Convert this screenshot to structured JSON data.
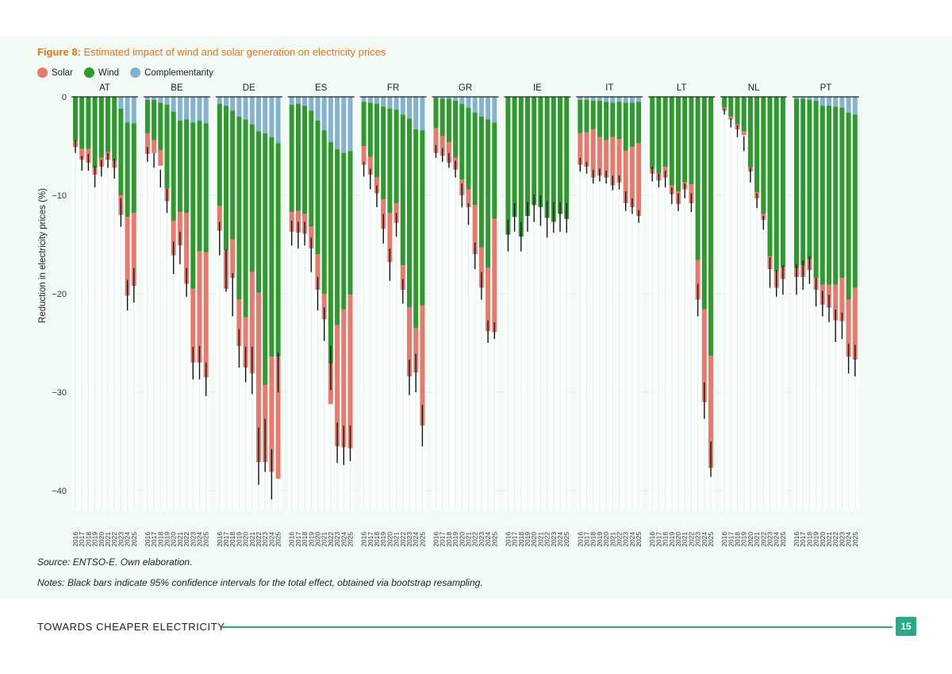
{
  "figure": {
    "label": "Figure 8:",
    "title": "Estimated impact of wind and solar generation on electricity prices"
  },
  "legend": [
    {
      "label": "Solar",
      "color": "#e87a6d"
    },
    {
      "label": "Wind",
      "color": "#2e9a2e"
    },
    {
      "label": "Complementarity",
      "color": "#86b2d2"
    }
  ],
  "source": "Source: ENTSO-E. Own elaboration.",
  "notes": "Notes: Black bars indicate 95% confidence intervals for the total effect, obtained via bootstrap resampling.",
  "footer": {
    "title": "TOWARDS CHEAPER ELECTRICITY",
    "page": "15"
  },
  "chart_data": {
    "type": "bar",
    "stacked": true,
    "ylabel": "Reduction in electricity prices (%)",
    "ylim": [
      -42,
      0
    ],
    "yticks": [
      0,
      -10,
      -20,
      -30,
      -40
    ],
    "ytick_labels": [
      "0",
      "−10",
      "−20",
      "−30",
      "−40"
    ],
    "x": [
      "2016",
      "2017",
      "2018",
      "2019",
      "2020",
      "2021",
      "2022",
      "2023",
      "2024",
      "2025"
    ],
    "series_names": [
      "Complementarity",
      "Wind",
      "Solar"
    ],
    "panels": [
      {
        "label": "AT",
        "complementarity": [
          0,
          0,
          0,
          0,
          0,
          0,
          0,
          1.2,
          2.6,
          2.7
        ],
        "wind": [
          4.5,
          5.3,
          5.3,
          7.2,
          6.2,
          5.6,
          6.5,
          8.8,
          9.6,
          9.1
        ],
        "solar": [
          0.6,
          1.1,
          1.4,
          0.7,
          0.9,
          0.8,
          0.7,
          2.0,
          8.0,
          7.4
        ],
        "ci": [
          [
            -5.7,
            -4.4
          ],
          [
            -7.5,
            -6.0
          ],
          [
            -7.5,
            -5.8
          ],
          [
            -9.2,
            -7.0
          ],
          [
            -8.1,
            -6.4
          ],
          [
            -7.2,
            -5.7
          ],
          [
            -8.3,
            -6.3
          ],
          [
            -13.2,
            -10.3
          ],
          [
            -21.7,
            -18.6
          ],
          [
            -20.9,
            -17.4
          ]
        ]
      },
      {
        "label": "BE",
        "complementarity": [
          0.3,
          0.3,
          0.6,
          0.8,
          1.5,
          2.4,
          2.3,
          2.6,
          2.4,
          2.7
        ],
        "wind": [
          3.4,
          4.1,
          4.8,
          8.5,
          11.1,
          9.3,
          9.5,
          16.9,
          13.3,
          13.1
        ],
        "solar": [
          2.1,
          1.3,
          1.6,
          1.3,
          3.5,
          3.4,
          7.2,
          7.5,
          11.3,
          12.7
        ],
        "ci": [
          [
            -6.6,
            -5.1
          ],
          [
            -7.2,
            -5.7
          ],
          [
            -9.2,
            -7.4
          ],
          [
            -11.8,
            -9.3
          ],
          [
            -18.0,
            -14.7
          ],
          [
            -17.0,
            -13.7
          ],
          [
            -20.3,
            -17.4
          ],
          [
            -28.7,
            -25.4
          ],
          [
            -28.7,
            -25.3
          ],
          [
            -30.4,
            -27.0
          ]
        ]
      },
      {
        "label": "DE",
        "complementarity": [
          0.7,
          0.9,
          1.4,
          2.0,
          2.3,
          2.8,
          3.5,
          3.7,
          4.1,
          4.7
        ],
        "wind": [
          10.4,
          14.7,
          13.1,
          18.6,
          20.1,
          15.0,
          16.4,
          25.6,
          22.3,
          21.7
        ],
        "solar": [
          2.5,
          3.9,
          3.9,
          4.7,
          5.1,
          10.3,
          17.2,
          7.8,
          11.7,
          12.4
        ],
        "ci": [
          [
            -16.1,
            -12.7
          ],
          [
            -19.8,
            -15.5
          ],
          [
            -22.3,
            -17.9
          ],
          [
            -27.5,
            -23.6
          ],
          [
            -29.0,
            -25.4
          ],
          [
            -30.2,
            -25.4
          ],
          [
            -39.4,
            -33.6
          ],
          [
            -38.1,
            -32.7
          ],
          [
            -40.9,
            -35.8
          ],
          [
            -30.0,
            -26.0
          ]
        ]
      },
      {
        "label": "ES",
        "complementarity": [
          0.8,
          0.7,
          0.9,
          1.4,
          2.4,
          3.4,
          4.6,
          5.3,
          5.7,
          5.5
        ],
        "wind": [
          10.9,
          10.9,
          11.0,
          11.8,
          13.6,
          16.6,
          22.5,
          17.9,
          15.9,
          14.6
        ],
        "solar": [
          2.0,
          2.2,
          2.0,
          2.2,
          3.6,
          2.6,
          4.1,
          12.3,
          14.0,
          15.6
        ],
        "ci": [
          [
            -15.1,
            -12.6
          ],
          [
            -15.4,
            -12.7
          ],
          [
            -15.1,
            -12.7
          ],
          [
            -17.8,
            -14.3
          ],
          [
            -21.7,
            -18.3
          ],
          [
            -24.8,
            -21.4
          ],
          [
            -29.8,
            -25.3
          ],
          [
            -37.2,
            -33.1
          ],
          [
            -37.4,
            -33.4
          ],
          [
            -37.0,
            -33.4
          ]
        ]
      },
      {
        "label": "FR",
        "complementarity": [
          0.5,
          0.6,
          0.7,
          1.0,
          1.2,
          1.3,
          1.8,
          2.2,
          3.3,
          3.4
        ],
        "wind": [
          4.5,
          5.5,
          7.5,
          9.4,
          10.6,
          9.5,
          15.3,
          19.2,
          20.2,
          17.8
        ],
        "solar": [
          1.9,
          1.8,
          1.6,
          3.0,
          5.0,
          2.0,
          2.5,
          7.0,
          4.5,
          12.2
        ],
        "ci": [
          [
            -8.1,
            -6.6
          ],
          [
            -9.4,
            -7.3
          ],
          [
            -11.2,
            -9.0
          ],
          [
            -14.9,
            -11.9
          ],
          [
            -18.7,
            -15.4
          ],
          [
            -14.2,
            -11.8
          ],
          [
            -21.0,
            -18.5
          ],
          [
            -30.3,
            -26.7
          ],
          [
            -30.0,
            -26.1
          ],
          [
            -35.5,
            -31.3
          ]
        ]
      },
      {
        "label": "GR",
        "complementarity": [
          0.1,
          0.2,
          0.2,
          0.4,
          0.7,
          1.1,
          1.6,
          2.0,
          2.3,
          2.6
        ],
        "wind": [
          3.1,
          3.8,
          4.4,
          5.8,
          7.7,
          8.3,
          9.4,
          13.3,
          15.1,
          9.8
        ],
        "solar": [
          2.5,
          2.0,
          2.1,
          1.2,
          1.6,
          1.8,
          5.0,
          4.1,
          6.4,
          11.5
        ],
        "ci": [
          [
            -6.2,
            -4.9
          ],
          [
            -6.6,
            -5.2
          ],
          [
            -7.2,
            -5.7
          ],
          [
            -8.2,
            -6.5
          ],
          [
            -11.2,
            -8.8
          ],
          [
            -13.0,
            -10.8
          ],
          [
            -17.5,
            -14.8
          ],
          [
            -20.6,
            -17.8
          ],
          [
            -25.0,
            -22.7
          ],
          [
            -24.6,
            -22.9
          ]
        ]
      },
      {
        "label": "IE",
        "complementarity": [
          0,
          0,
          0,
          0,
          0,
          0,
          0,
          0,
          0,
          0
        ],
        "wind": [
          14.0,
          12.2,
          14.2,
          12.1,
          11.0,
          11.2,
          12.3,
          12.7,
          11.9,
          12.4
        ],
        "solar": [
          0,
          0,
          0,
          0,
          0,
          0,
          0,
          0,
          0,
          0
        ],
        "ci": [
          [
            -15.7,
            -12.5
          ],
          [
            -13.7,
            -10.8
          ],
          [
            -15.7,
            -12.7
          ],
          [
            -13.7,
            -10.7
          ],
          [
            -12.7,
            -9.9
          ],
          [
            -13.1,
            -10.0
          ],
          [
            -14.3,
            -10.6
          ],
          [
            -13.8,
            -10.7
          ],
          [
            -13.7,
            -10.7
          ],
          [
            -13.8,
            -10.8
          ]
        ]
      },
      {
        "label": "IT",
        "complementarity": [
          0.3,
          0.3,
          0.4,
          0.4,
          0.5,
          0.6,
          0.5,
          0.6,
          0.6,
          0.5
        ],
        "wind": [
          3.4,
          3.3,
          2.9,
          3.7,
          3.9,
          3.5,
          3.8,
          4.9,
          4.5,
          4.2
        ],
        "solar": [
          3.2,
          3.5,
          4.9,
          3.9,
          3.8,
          4.9,
          4.4,
          5.3,
          6.1,
          7.4
        ],
        "ci": [
          [
            -7.6,
            -6.2
          ],
          [
            -7.8,
            -6.6
          ],
          [
            -8.8,
            -7.4
          ],
          [
            -8.6,
            -7.3
          ],
          [
            -8.8,
            -7.5
          ],
          [
            -9.5,
            -8.0
          ],
          [
            -9.4,
            -8.0
          ],
          [
            -11.6,
            -9.6
          ],
          [
            -11.9,
            -10.3
          ],
          [
            -12.8,
            -11.5
          ]
        ]
      },
      {
        "label": "LT",
        "complementarity": [
          0,
          0,
          0,
          0,
          0,
          0,
          0,
          0,
          0,
          0
        ],
        "wind": [
          7.3,
          7.8,
          7.1,
          9.0,
          9.6,
          8.7,
          8.9,
          16.6,
          21.6,
          26.3
        ],
        "solar": [
          0.5,
          0.7,
          1.1,
          0.9,
          1.3,
          0.7,
          1.9,
          4.0,
          9.4,
          11.4
        ],
        "ci": [
          [
            -8.6,
            -7.1
          ],
          [
            -9.2,
            -7.8
          ],
          [
            -9.2,
            -7.5
          ],
          [
            -10.9,
            -9.2
          ],
          [
            -11.6,
            -9.8
          ],
          [
            -10.3,
            -8.8
          ],
          [
            -11.7,
            -9.8
          ],
          [
            -22.3,
            -19.0
          ],
          [
            -32.7,
            -29.0
          ],
          [
            -38.6,
            -35.0
          ]
        ]
      },
      {
        "label": "NL",
        "complementarity": [
          0,
          0,
          0,
          0,
          0,
          0,
          0,
          0,
          0,
          0
        ],
        "wind": [
          1.1,
          2.0,
          2.8,
          3.5,
          7.2,
          9.7,
          11.9,
          16.2,
          17.7,
          17.3
        ],
        "solar": [
          0.3,
          0.3,
          0.5,
          0.4,
          0.4,
          0.6,
          0.6,
          1.3,
          1.7,
          1.2
        ],
        "ci": [
          [
            -1.8,
            -1.2
          ],
          [
            -3.1,
            -2.2
          ],
          [
            -4.1,
            -2.9
          ],
          [
            -5.5,
            -4.0
          ],
          [
            -8.7,
            -7.2
          ],
          [
            -11.3,
            -9.8
          ],
          [
            -13.5,
            -12.1
          ],
          [
            -19.4,
            -16.3
          ],
          [
            -20.3,
            -17.6
          ],
          [
            -20.1,
            -17.1
          ]
        ]
      },
      {
        "label": "PT",
        "complementarity": [
          0.2,
          0.2,
          0.3,
          0.4,
          0.9,
          0.9,
          1.0,
          1.1,
          1.6,
          1.8
        ],
        "wind": [
          17.2,
          16.9,
          16.2,
          18.0,
          18.2,
          18.2,
          18.1,
          17.3,
          19.0,
          17.6
        ],
        "solar": [
          0.9,
          1.2,
          1.1,
          1.2,
          2.0,
          2.3,
          3.6,
          4.4,
          5.8,
          7.3
        ],
        "ci": [
          [
            -20.1,
            -17.0
          ],
          [
            -19.6,
            -16.6
          ],
          [
            -19.0,
            -16.2
          ],
          [
            -21.3,
            -18.4
          ],
          [
            -22.3,
            -19.7
          ],
          [
            -22.9,
            -20.1
          ],
          [
            -24.9,
            -21.6
          ],
          [
            -24.6,
            -21.9
          ],
          [
            -28.1,
            -25.1
          ],
          [
            -28.4,
            -25.2
          ]
        ]
      }
    ]
  }
}
